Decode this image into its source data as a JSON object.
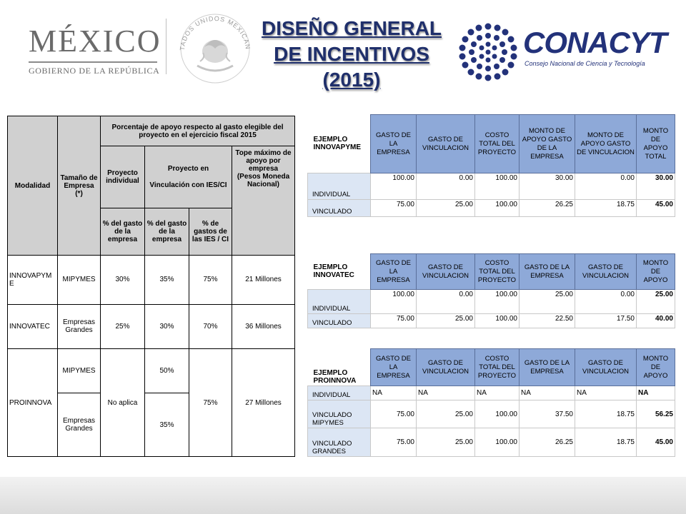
{
  "header": {
    "left_logo_word": "MÉXICO",
    "left_logo_sub": "GOBIERNO DE LA REPÚBLICA",
    "seal_text": "ESTADOS UNIDOS MEXICANOS",
    "title_lines": [
      "DISEÑO GENERAL",
      "DE INCENTIVOS",
      "(2015)"
    ],
    "right_logo_word": "CONACYT",
    "right_logo_sub": "Consejo Nacional de Ciencia y Tecnología",
    "title_color": "#1f2f6b",
    "brand_color": "#23327a"
  },
  "main_table": {
    "col_modalidad": "Modalidad",
    "col_tamano": "Tamaño de Empresa (*)",
    "col_porcentaje": "Porcentaje de apoyo respecto al gasto elegible del proyecto en el ejercicio fiscal 2015",
    "col_individual": "Proyecto individual",
    "col_vinculacion_1": "Proyecto en",
    "col_vinculacion_2": "Vinculación con IES/CI",
    "col_tope_1": "Tope máximo de apoyo por empresa",
    "col_tope_2": "(Pesos Moneda Nacional)",
    "sub_1": "% del gasto de la empresa",
    "sub_2": "% del gasto de la empresa",
    "sub_3": "% de gastos de las IES / CI",
    "rows": {
      "innovapyme": {
        "modalidad": "INNOVAPYM E",
        "tamano": "MIPYMES",
        "ind": "30%",
        "vinc": "35%",
        "ies": "75%",
        "tope": "21 Millones"
      },
      "innovatec": {
        "modalidad": "INNOVATEC",
        "tamano": "Empresas Grandes",
        "ind": "25%",
        "vinc": "30%",
        "ies": "70%",
        "tope": "36 Millones"
      },
      "proinnova": {
        "modalidad": "PROINNOVA",
        "tamano_1": "MIPYMES",
        "tamano_2": "Empresas Grandes",
        "ind": "No aplica",
        "vinc_1": "50%",
        "vinc_2": "35%",
        "ies": "75%",
        "tope": "27 Millones"
      }
    }
  },
  "examples": {
    "innovapyme": {
      "label": "EJEMPLO INNOVAPYME",
      "headers": [
        "GASTO DE LA EMPRESA",
        "GASTO DE VINCULACION",
        "COSTO TOTAL DEL PROYECTO",
        "MONTO DE APOYO GASTO DE LA EMPRESA",
        "MONTO DE APOYO GASTO DE VINCULACION",
        "MONTO DE APOYO TOTAL"
      ],
      "rows": [
        {
          "label": "INDIVIDUAL",
          "values": [
            "100.00",
            "0.00",
            "100.00",
            "30.00",
            "0.00",
            "30.00"
          ]
        },
        {
          "label": "VINCULADO",
          "values": [
            "75.00",
            "25.00",
            "100.00",
            "26.25",
            "18.75",
            "45.00"
          ]
        }
      ]
    },
    "innovatec": {
      "label": "EJEMPLO INNOVATEC",
      "headers": [
        "GASTO DE LA EMPRESA",
        "GASTO DE VINCULACION",
        "COSTO TOTAL DEL PROYECTO",
        "GASTO DE LA EMPRESA",
        "GASTO DE VINCULACION",
        "MONTO DE APOYO"
      ],
      "rows": [
        {
          "label": "INDIVIDUAL",
          "values": [
            "100.00",
            "0.00",
            "100.00",
            "25.00",
            "0.00",
            "25.00"
          ]
        },
        {
          "label": "VINCULADO",
          "values": [
            "75.00",
            "25.00",
            "100.00",
            "22.50",
            "17.50",
            "40.00"
          ]
        }
      ]
    },
    "proinnova": {
      "label": "EJEMPLO PROINNOVA",
      "headers": [
        "GASTO DE LA EMPRESA",
        "GASTO DE VINCULACION",
        "COSTO TOTAL DEL PROYECTO",
        "GASTO DE LA EMPRESA",
        "GASTO DE VINCULACION",
        "MONTO DE APOYO"
      ],
      "rows": [
        {
          "label": "INDIVIDUAL",
          "values": [
            "NA",
            "NA",
            "NA",
            "NA",
            "NA",
            "NA"
          ]
        },
        {
          "label": "VINCULADO MIPYMES",
          "values": [
            "75.00",
            "25.00",
            "100.00",
            "37.50",
            "18.75",
            "56.25"
          ]
        },
        {
          "label": "VINCULADO GRANDES",
          "values": [
            "75.00",
            "25.00",
            "100.00",
            "26.25",
            "18.75",
            "45.00"
          ]
        }
      ]
    }
  }
}
